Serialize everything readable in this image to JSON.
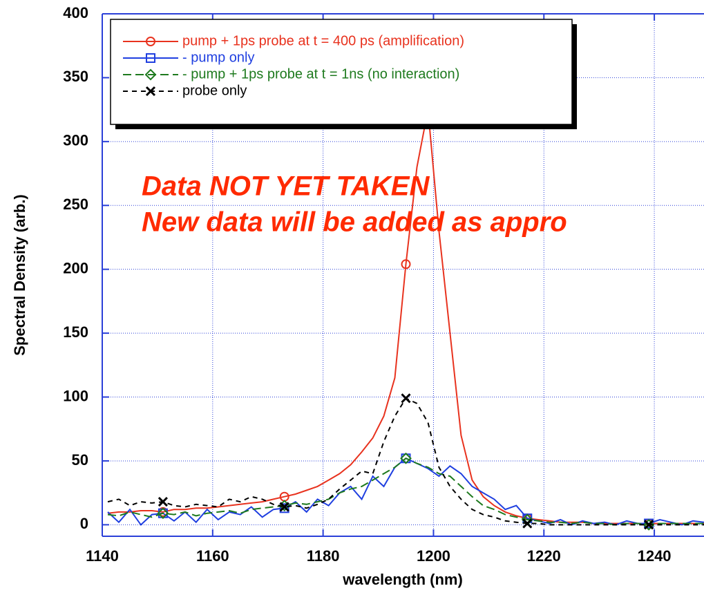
{
  "chart_data": {
    "type": "line",
    "xlabel": "wavelength (nm)",
    "ylabel": "Spectral Density (arb.)",
    "annotations": [
      "Data NOT YET TAKEN",
      "New data will be added as appro"
    ],
    "xlim": [
      1140,
      1249
    ],
    "ylim": [
      -9,
      400
    ],
    "xticks": [
      1140,
      1160,
      1180,
      1200,
      1220,
      1240
    ],
    "yticks": [
      0,
      50,
      100,
      150,
      200,
      250,
      300,
      350,
      400
    ],
    "grid": true,
    "legend": "upper left",
    "x": [
      1141,
      1143,
      1145,
      1147,
      1149,
      1151,
      1153,
      1155,
      1157,
      1159,
      1161,
      1163,
      1165,
      1167,
      1169,
      1171,
      1173,
      1175,
      1177,
      1179,
      1181,
      1183,
      1185,
      1187,
      1189,
      1191,
      1193,
      1195,
      1197,
      1199,
      1201,
      1203,
      1205,
      1207,
      1209,
      1211,
      1213,
      1215,
      1217,
      1219,
      1221,
      1223,
      1225,
      1227,
      1229,
      1231,
      1233,
      1235,
      1237,
      1239,
      1241,
      1243,
      1245,
      1247,
      1249
    ],
    "series": [
      {
        "name": "pump + 1ps probe at t = 400 ps (amplification)",
        "color": "#e8321e",
        "marker": "circle",
        "dash": "none",
        "values": [
          9,
          10,
          10,
          11,
          11,
          10,
          12,
          12,
          13,
          13,
          14,
          15,
          16,
          17,
          18,
          20,
          22,
          24,
          27,
          30,
          35,
          40,
          47,
          57,
          68,
          85,
          115,
          204,
          280,
          325,
          230,
          150,
          70,
          35,
          22,
          15,
          10,
          7,
          5,
          4,
          3,
          2,
          2,
          2,
          1,
          1,
          1,
          1,
          1,
          1,
          1,
          1,
          1,
          1,
          1
        ]
      },
      {
        "name": "- pump only",
        "color": "#1f3fe0",
        "marker": "square",
        "dash": "none",
        "values": [
          10,
          2,
          12,
          0,
          8,
          9,
          3,
          10,
          2,
          12,
          4,
          10,
          8,
          14,
          6,
          12,
          13,
          18,
          10,
          20,
          15,
          25,
          30,
          20,
          38,
          30,
          45,
          52,
          48,
          44,
          38,
          46,
          40,
          30,
          25,
          20,
          12,
          15,
          5,
          3,
          1,
          4,
          0,
          3,
          1,
          2,
          0,
          3,
          1,
          1,
          4,
          2,
          0,
          3,
          2
        ]
      },
      {
        "name": "- pump + 1ps probe at t = 1ns (no interaction)",
        "color": "#1e7a1e",
        "marker": "diamond",
        "dash": "12 6",
        "values": [
          8,
          7,
          10,
          8,
          6,
          9,
          8,
          10,
          7,
          9,
          10,
          11,
          9,
          12,
          13,
          14,
          15,
          17,
          16,
          18,
          20,
          25,
          28,
          30,
          35,
          40,
          45,
          52,
          48,
          45,
          40,
          38,
          30,
          22,
          15,
          12,
          8,
          6,
          4,
          3,
          2,
          2,
          1,
          2,
          1,
          1,
          0,
          1,
          1,
          0,
          1,
          1,
          1,
          1,
          1
        ]
      },
      {
        "name": "probe only",
        "color": "#000000",
        "marker": "x",
        "dash": "7 6",
        "values": [
          18,
          20,
          15,
          18,
          17,
          18,
          15,
          14,
          16,
          15,
          14,
          20,
          18,
          22,
          20,
          16,
          14,
          15,
          13,
          16,
          20,
          28,
          35,
          42,
          40,
          65,
          85,
          99,
          95,
          80,
          45,
          30,
          20,
          12,
          8,
          6,
          3,
          2,
          1,
          1,
          0,
          0,
          0,
          0,
          0,
          0,
          0,
          0,
          0,
          0,
          0,
          0,
          0,
          0,
          0
        ]
      }
    ]
  }
}
